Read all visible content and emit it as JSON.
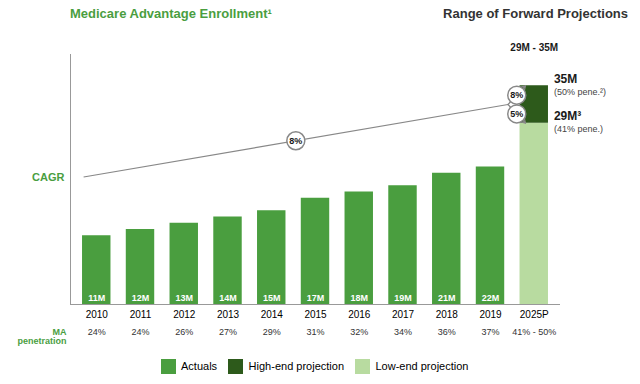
{
  "chart_data": {
    "type": "bar",
    "stacked": true,
    "title": "Medicare Advantage Enrollment¹",
    "subtitle": "Range of Forward Projections",
    "categories": [
      "2010",
      "2011",
      "2012",
      "2013",
      "2014",
      "2015",
      "2016",
      "2017",
      "2018",
      "2019",
      "2025P"
    ],
    "series": [
      {
        "name": "Actuals",
        "color": "#4a9e3f",
        "values": [
          11,
          12,
          13,
          14,
          15,
          17,
          18,
          19,
          21,
          22,
          0
        ],
        "value_labels": [
          "11M",
          "12M",
          "13M",
          "14M",
          "15M",
          "17M",
          "18M",
          "19M",
          "21M",
          "22M",
          null
        ]
      },
      {
        "name": "High-end projection",
        "color": "#2d5a1b",
        "values": [
          0,
          0,
          0,
          0,
          0,
          0,
          0,
          0,
          0,
          0,
          6
        ]
      },
      {
        "name": "Low-end projection",
        "color": "#b8dba0",
        "values": [
          0,
          0,
          0,
          0,
          0,
          0,
          0,
          0,
          0,
          0,
          29
        ]
      }
    ],
    "ylim": [
      0,
      40
    ],
    "tick_labels": "x",
    "grid": false,
    "legend": "bottom",
    "data_labels": true,
    "penetration": {
      "label": "MA\npenetration",
      "labels": [
        "24%",
        "24%",
        "26%",
        "27%",
        "29%",
        "31%",
        "32%",
        "34%",
        "36%",
        "37%",
        "41% - 50%"
      ]
    },
    "cagr": {
      "label": "CAGR",
      "overall": "8%",
      "high": "8%",
      "low": "5%"
    },
    "range_label": "29M - 35M",
    "end_labels": {
      "high": "35M",
      "high_note": "(50% pene.²)",
      "low": "29M³",
      "low_note": "(41% pene.)"
    }
  }
}
